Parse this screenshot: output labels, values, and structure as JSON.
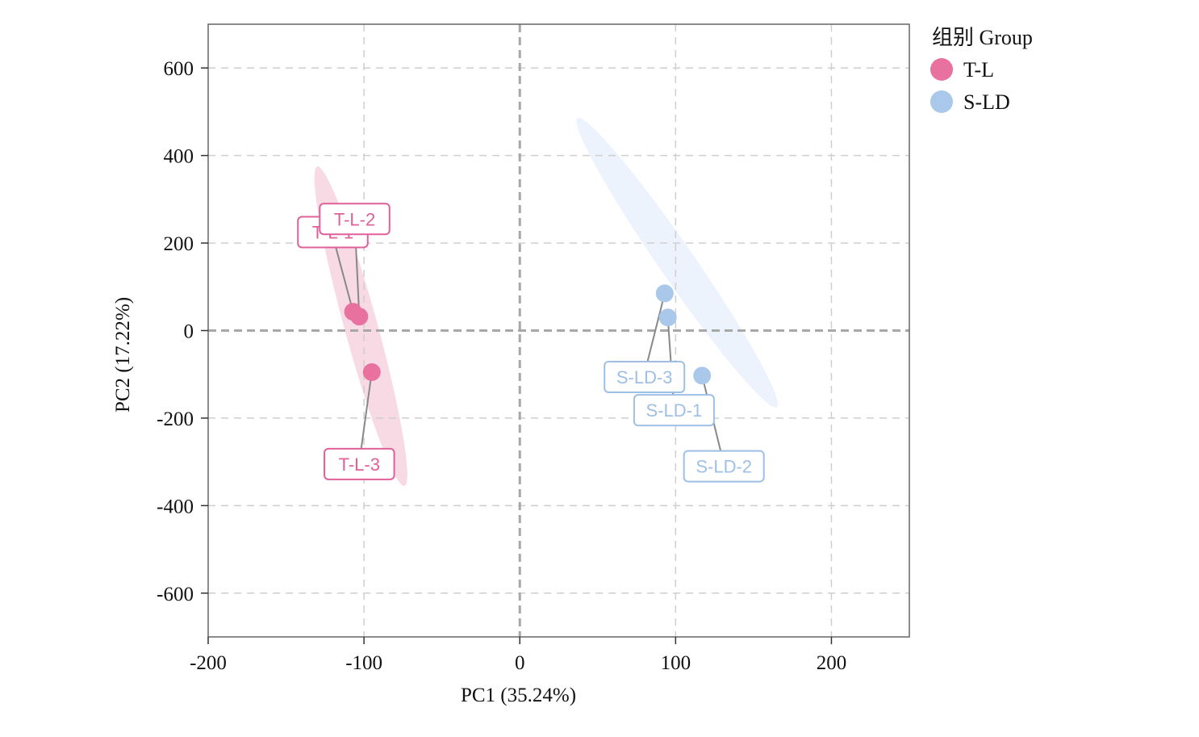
{
  "chart_data": {
    "type": "scatter",
    "xlabel": "PC1 (35.24%)",
    "ylabel": "PC2 (17.22%)",
    "xlim": [
      -200,
      250
    ],
    "ylim": [
      -700,
      700
    ],
    "x_ticks": [
      -200,
      -100,
      0,
      100,
      200
    ],
    "y_ticks": [
      -600,
      -400,
      -200,
      0,
      200,
      400,
      600
    ],
    "x_tick_labels": [
      "-200",
      "-100",
      "0",
      "100",
      "200"
    ],
    "y_tick_labels": [
      "-600",
      "-400",
      "-200",
      "0",
      "200",
      "400",
      "600"
    ],
    "grid": true,
    "zero_lines": true,
    "legend": {
      "title": "组别 Group",
      "position": "top-right-outside"
    },
    "series": [
      {
        "name": "T-L",
        "color": "#e8719f",
        "label_color": "#e0609a",
        "ellipse_color": "#f7d3e1",
        "points": [
          {
            "label": "T-L-1",
            "x": -107,
            "y": 43,
            "label_x": -120,
            "label_y": 225
          },
          {
            "label": "T-L-2",
            "x": -103,
            "y": 32,
            "label_x": -106,
            "label_y": 255
          },
          {
            "label": "T-L-3",
            "x": -95,
            "y": -95,
            "label_x": -103,
            "label_y": -305
          }
        ]
      },
      {
        "name": "S-LD",
        "color": "#a9c8ea",
        "label_color": "#9ec0e6",
        "ellipse_color": "#e9f1fb",
        "points": [
          {
            "label": "S-LD-1",
            "x": 95,
            "y": 30,
            "label_x": 99,
            "label_y": -182
          },
          {
            "label": "S-LD-2",
            "x": 117,
            "y": -103,
            "label_x": 131,
            "label_y": -310
          },
          {
            "label": "S-LD-3",
            "x": 93,
            "y": 85,
            "label_x": 80,
            "label_y": -106
          }
        ]
      }
    ],
    "ellipses": [
      {
        "series": "T-L",
        "center_x": -102,
        "center_y": 10,
        "end_x": -130,
        "end_y": 375
      },
      {
        "series": "S-LD",
        "center_x": 101,
        "center_y": 155,
        "end_x": 37,
        "end_y": 485
      }
    ]
  }
}
